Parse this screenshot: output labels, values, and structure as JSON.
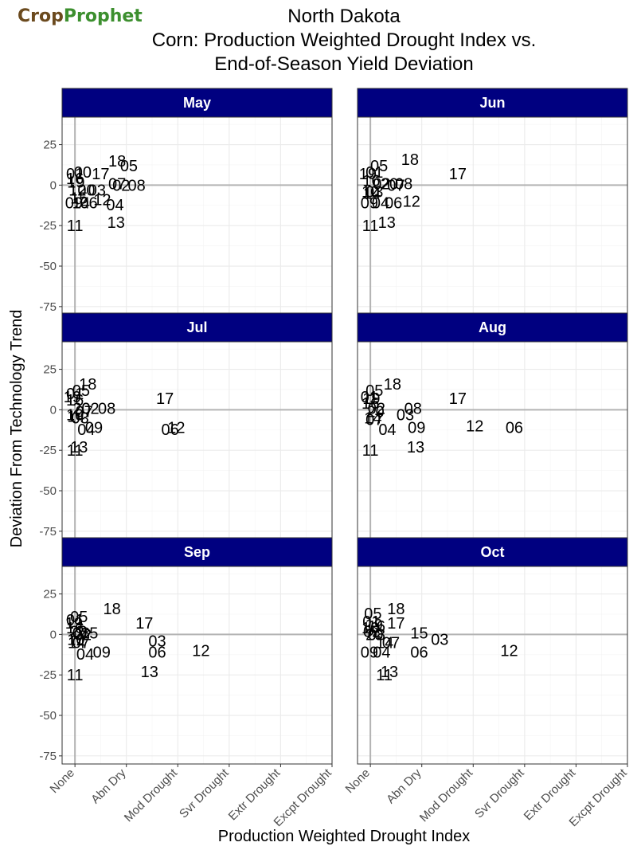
{
  "logo": {
    "part1": "Crop",
    "part2": "Prophet"
  },
  "header": {
    "line1": "North Dakota",
    "line2": "Corn: Production Weighted Drought Index vs.",
    "line3": "End-of-Season Yield Deviation"
  },
  "chart_data": {
    "type": "scatter",
    "xlabel": "Production Weighted Drought Index",
    "ylabel": "Deviation From Technology Trend",
    "x_tick_labels": [
      "None",
      "Abn Dry",
      "Mod Drought",
      "Svr Drought",
      "Extr Drought",
      "Excpt Drought"
    ],
    "x_ticks": [
      0,
      1,
      2,
      3,
      4,
      5
    ],
    "xlim": [
      -0.25,
      5
    ],
    "y_ticks": [
      25,
      0,
      -25,
      -50,
      -75
    ],
    "ylim": [
      -80,
      42
    ],
    "zero_line": 0,
    "colors": {
      "strip": "#000080",
      "strip_text": "#ffffff",
      "panel_border": "#333333",
      "grid": "#ebebeb",
      "zero_line": "#b3b3b3"
    },
    "panels": [
      {
        "month": "May",
        "points": [
          {
            "label": "18",
            "x": 0.82,
            "y": 15
          },
          {
            "label": "05",
            "x": 1.05,
            "y": 12
          },
          {
            "label": "00",
            "x": 0.15,
            "y": 8
          },
          {
            "label": "01",
            "x": 0.0,
            "y": 7
          },
          {
            "label": "17",
            "x": 0.5,
            "y": 7
          },
          {
            "label": "16",
            "x": 0.0,
            "y": 4
          },
          {
            "label": "19",
            "x": 0.02,
            "y": 2
          },
          {
            "label": "07",
            "x": 0.82,
            "y": 1
          },
          {
            "label": "02",
            "x": 0.9,
            "y": 0
          },
          {
            "label": "08",
            "x": 1.2,
            "y": 0
          },
          {
            "label": "10",
            "x": 0.05,
            "y": -3
          },
          {
            "label": "20",
            "x": 0.22,
            "y": -3
          },
          {
            "label": "03",
            "x": 0.43,
            "y": -3
          },
          {
            "label": "15",
            "x": 0.08,
            "y": -8
          },
          {
            "label": "12",
            "x": 0.53,
            "y": -9
          },
          {
            "label": "09",
            "x": -0.02,
            "y": -11
          },
          {
            "label": "14",
            "x": 0.12,
            "y": -11
          },
          {
            "label": "06",
            "x": 0.27,
            "y": -11
          },
          {
            "label": "04",
            "x": 0.78,
            "y": -12
          },
          {
            "label": "13",
            "x": 0.8,
            "y": -23
          },
          {
            "label": "11",
            "x": 0.0,
            "y": -25
          }
        ]
      },
      {
        "month": "Jun",
        "points": [
          {
            "label": "18",
            "x": 0.77,
            "y": 16
          },
          {
            "label": "05",
            "x": 0.17,
            "y": 12
          },
          {
            "label": "01",
            "x": 0.08,
            "y": 8
          },
          {
            "label": "19",
            "x": -0.05,
            "y": 7
          },
          {
            "label": "17",
            "x": 1.7,
            "y": 7
          },
          {
            "label": "16",
            "x": 0.02,
            "y": 3
          },
          {
            "label": "20",
            "x": 0.37,
            "y": 1
          },
          {
            "label": "02",
            "x": 0.22,
            "y": 1
          },
          {
            "label": "08",
            "x": 0.65,
            "y": 1
          },
          {
            "label": "07",
            "x": 0.5,
            "y": 0
          },
          {
            "label": "10",
            "x": 0.0,
            "y": -4
          },
          {
            "label": "14",
            "x": 0.03,
            "y": -5
          },
          {
            "label": "03",
            "x": 0.08,
            "y": -4
          },
          {
            "label": "12",
            "x": 0.8,
            "y": -10
          },
          {
            "label": "09",
            "x": -0.02,
            "y": -11
          },
          {
            "label": "04",
            "x": 0.2,
            "y": -11
          },
          {
            "label": "06",
            "x": 0.45,
            "y": -11
          },
          {
            "label": "13",
            "x": 0.32,
            "y": -23
          },
          {
            "label": "11",
            "x": 0.0,
            "y": -25
          }
        ]
      },
      {
        "month": "Jul",
        "points": [
          {
            "label": "18",
            "x": 0.25,
            "y": 16
          },
          {
            "label": "05",
            "x": 0.12,
            "y": 12
          },
          {
            "label": "01",
            "x": 0.0,
            "y": 10
          },
          {
            "label": "19",
            "x": -0.05,
            "y": 8
          },
          {
            "label": "16",
            "x": 0.0,
            "y": 6
          },
          {
            "label": "17",
            "x": 1.75,
            "y": 7
          },
          {
            "label": "20",
            "x": 0.13,
            "y": 1
          },
          {
            "label": "02",
            "x": 0.3,
            "y": 1
          },
          {
            "label": "08",
            "x": 0.62,
            "y": 1
          },
          {
            "label": "07",
            "x": 0.18,
            "y": -1
          },
          {
            "label": "10",
            "x": 0.0,
            "y": -3
          },
          {
            "label": "14",
            "x": 0.02,
            "y": -4
          },
          {
            "label": "03",
            "x": 0.1,
            "y": -5
          },
          {
            "label": "09",
            "x": 0.37,
            "y": -11
          },
          {
            "label": "04",
            "x": 0.22,
            "y": -12
          },
          {
            "label": "06",
            "x": 1.85,
            "y": -12
          },
          {
            "label": "12",
            "x": 1.97,
            "y": -11
          },
          {
            "label": "13",
            "x": 0.08,
            "y": -23
          },
          {
            "label": "11",
            "x": 0.0,
            "y": -25
          }
        ]
      },
      {
        "month": "Aug",
        "points": [
          {
            "label": "18",
            "x": 0.43,
            "y": 16
          },
          {
            "label": "05",
            "x": 0.08,
            "y": 12
          },
          {
            "label": "01",
            "x": -0.02,
            "y": 8
          },
          {
            "label": "19",
            "x": 0.02,
            "y": 7
          },
          {
            "label": "17",
            "x": 1.7,
            "y": 7
          },
          {
            "label": "16",
            "x": 0.0,
            "y": 4
          },
          {
            "label": "02",
            "x": 0.12,
            "y": 1
          },
          {
            "label": "08",
            "x": 0.83,
            "y": 1
          },
          {
            "label": "20",
            "x": 0.1,
            "y": -1
          },
          {
            "label": "03",
            "x": 0.68,
            "y": -3
          },
          {
            "label": "14",
            "x": 0.05,
            "y": -5
          },
          {
            "label": "07",
            "x": 0.08,
            "y": -6
          },
          {
            "label": "09",
            "x": 0.9,
            "y": -11
          },
          {
            "label": "12",
            "x": 2.03,
            "y": -10
          },
          {
            "label": "06",
            "x": 2.8,
            "y": -11
          },
          {
            "label": "04",
            "x": 0.33,
            "y": -12
          },
          {
            "label": "13",
            "x": 0.88,
            "y": -23
          },
          {
            "label": "11",
            "x": 0.0,
            "y": -25
          }
        ]
      },
      {
        "month": "Sep",
        "points": [
          {
            "label": "18",
            "x": 0.72,
            "y": 16
          },
          {
            "label": "05",
            "x": 0.08,
            "y": 11
          },
          {
            "label": "01",
            "x": 0.0,
            "y": 9
          },
          {
            "label": "19",
            "x": -0.02,
            "y": 7
          },
          {
            "label": "17",
            "x": 1.35,
            "y": 7
          },
          {
            "label": "16",
            "x": 0.0,
            "y": 4
          },
          {
            "label": "15",
            "x": 0.28,
            "y": 1
          },
          {
            "label": "20",
            "x": 0.07,
            "y": 2
          },
          {
            "label": "08",
            "x": 0.12,
            "y": 1
          },
          {
            "label": "02",
            "x": 0.15,
            "y": 0
          },
          {
            "label": "10",
            "x": 0.02,
            "y": -3
          },
          {
            "label": "03",
            "x": 1.6,
            "y": -4
          },
          {
            "label": "14",
            "x": 0.03,
            "y": -5
          },
          {
            "label": "07",
            "x": 0.12,
            "y": -5
          },
          {
            "label": "09",
            "x": 0.52,
            "y": -11
          },
          {
            "label": "06",
            "x": 1.6,
            "y": -11
          },
          {
            "label": "12",
            "x": 2.45,
            "y": -10
          },
          {
            "label": "04",
            "x": 0.2,
            "y": -12
          },
          {
            "label": "13",
            "x": 1.45,
            "y": -23
          },
          {
            "label": "11",
            "x": 0.0,
            "y": -25
          }
        ]
      },
      {
        "month": "Oct",
        "points": [
          {
            "label": "18",
            "x": 0.5,
            "y": 16
          },
          {
            "label": "05",
            "x": 0.05,
            "y": 13
          },
          {
            "label": "01",
            "x": 0.02,
            "y": 8
          },
          {
            "label": "17",
            "x": 0.5,
            "y": 7
          },
          {
            "label": "19",
            "x": 0.07,
            "y": 6
          },
          {
            "label": "16",
            "x": 0.12,
            "y": 5
          },
          {
            "label": "10",
            "x": 0.0,
            "y": 4
          },
          {
            "label": "15",
            "x": 0.95,
            "y": 1
          },
          {
            "label": "02",
            "x": 0.03,
            "y": 2
          },
          {
            "label": "20",
            "x": 0.08,
            "y": 0
          },
          {
            "label": "08",
            "x": 0.12,
            "y": 0
          },
          {
            "label": "03",
            "x": 1.35,
            "y": -3
          },
          {
            "label": "14",
            "x": 0.28,
            "y": -5
          },
          {
            "label": "07",
            "x": 0.4,
            "y": -5
          },
          {
            "label": "09",
            "x": -0.02,
            "y": -11
          },
          {
            "label": "04",
            "x": 0.22,
            "y": -11
          },
          {
            "label": "06",
            "x": 0.95,
            "y": -11
          },
          {
            "label": "12",
            "x": 2.7,
            "y": -10
          },
          {
            "label": "13",
            "x": 0.37,
            "y": -23
          },
          {
            "label": "11",
            "x": 0.27,
            "y": -25
          }
        ]
      }
    ]
  }
}
